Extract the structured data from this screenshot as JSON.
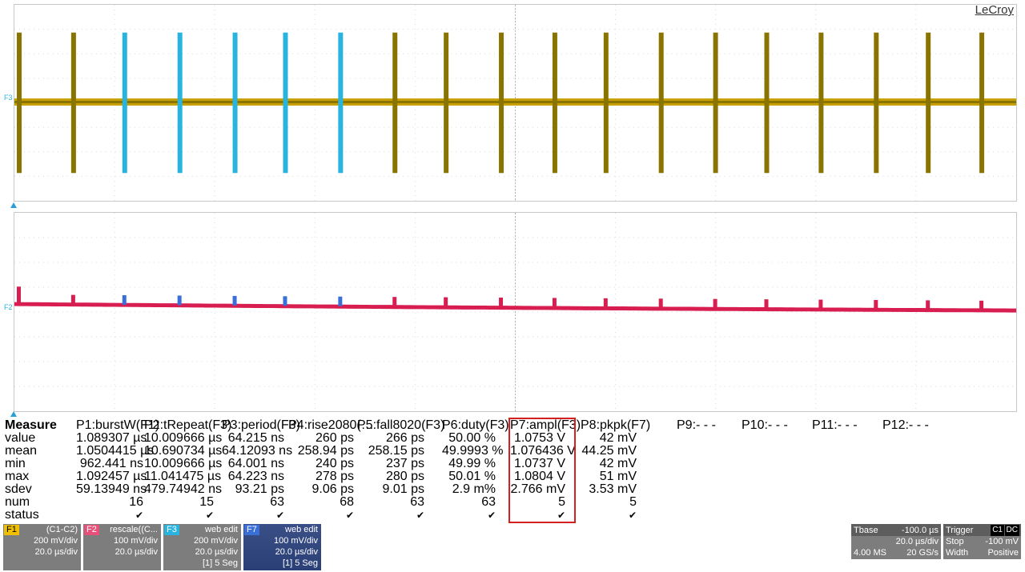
{
  "brand": "LeCroy",
  "traces": {
    "top_label": "F3",
    "bottom_label": "F2"
  },
  "colors": {
    "trace_f3": "#c8a000",
    "trace_f3_dark": "#8a7400",
    "segment_highlight": "#29b4e0",
    "trace_f2": "#d81e50",
    "trace_f2_highlight": "#3a6fd8",
    "highlight_box": "#d42020"
  },
  "measure": {
    "title": "Measure",
    "row_labels": [
      "value",
      "mean",
      "min",
      "max",
      "sdev",
      "num",
      "status"
    ],
    "columns": [
      {
        "header": "P1:burstW(F1)",
        "values": [
          "1.089307 µs",
          "1.0504415 µs",
          "962.441 ns",
          "1.092457 µs",
          "59.13949 ns",
          "16"
        ]
      },
      {
        "header": "P2:tRepeat(F3)",
        "values": [
          "10.009666 µs",
          "10.690734 µs",
          "10.009666 µs",
          "11.041475 µs",
          "479.74942 ns",
          "15"
        ]
      },
      {
        "header": "P3:period(F3)",
        "values": [
          "64.215 ns",
          "64.12093 ns",
          "64.001 ns",
          "64.223 ns",
          "93.21 ps",
          "63"
        ]
      },
      {
        "header": "P4:rise2080(…",
        "values": [
          "260 ps",
          "258.94 ps",
          "240 ps",
          "278 ps",
          "9.06 ps",
          "68"
        ]
      },
      {
        "header": "P5:fall8020(F3)",
        "values": [
          "266 ps",
          "258.15 ps",
          "237 ps",
          "280 ps",
          "9.01 ps",
          "63"
        ]
      },
      {
        "header": "P6:duty(F3)",
        "values": [
          "50.00 %",
          "49.9993 %",
          "49.99 %",
          "50.01 %",
          "2.9 m%",
          "63"
        ]
      },
      {
        "header": "P7:ampl(F3)",
        "values": [
          "1.0753 V",
          "1.076436 V",
          "1.0737 V",
          "1.0804 V",
          "2.766 mV",
          "5"
        ]
      },
      {
        "header": "P8:pkpk(F7)",
        "values": [
          "42 mV",
          "44.25 mV",
          "42 mV",
          "51 mV",
          "3.53 mV",
          "5"
        ]
      }
    ],
    "empty_params": [
      "P9:- - -",
      "P10:- - -",
      "P11:- - -",
      "P12:- - -"
    ],
    "status_mark": "✔"
  },
  "trace_descriptors": [
    {
      "tag": "F1",
      "tag_color": "#f0c000",
      "tag_text_color": "#000",
      "source": "(C1-C2)",
      "vdiv": "200 mV/div",
      "tdiv": "20.0 µs/div",
      "extra": ""
    },
    {
      "tag": "F2",
      "tag_color": "#e8507a",
      "tag_text_color": "#fff",
      "source": "rescale((C...",
      "vdiv": "100 mV/div",
      "tdiv": "20.0 µs/div",
      "extra": ""
    },
    {
      "tag": "F3",
      "tag_color": "#29b4e0",
      "tag_text_color": "#fff",
      "source": "web edit",
      "vdiv": "200 mV/div",
      "tdiv": "20.0 µs/div",
      "extra": "[1] 5 Seg"
    },
    {
      "tag": "F7",
      "tag_color": "#3a6fd8",
      "tag_text_color": "#fff",
      "source": "web edit",
      "vdiv": "100 mV/div",
      "tdiv": "20.0 µs/div",
      "extra": "[1] 5 Seg"
    }
  ],
  "timebase": {
    "label": "Tbase",
    "delay": "-100.0 µs",
    "tdiv": "20.0 µs/div",
    "samples": "4.00 MS",
    "rate": "20 GS/s"
  },
  "trigger": {
    "label": "Trigger",
    "badge1": "C1",
    "badge2": "DC",
    "mode": "Stop",
    "level": "-100 mV",
    "type": "Width",
    "slope": "Positive"
  }
}
